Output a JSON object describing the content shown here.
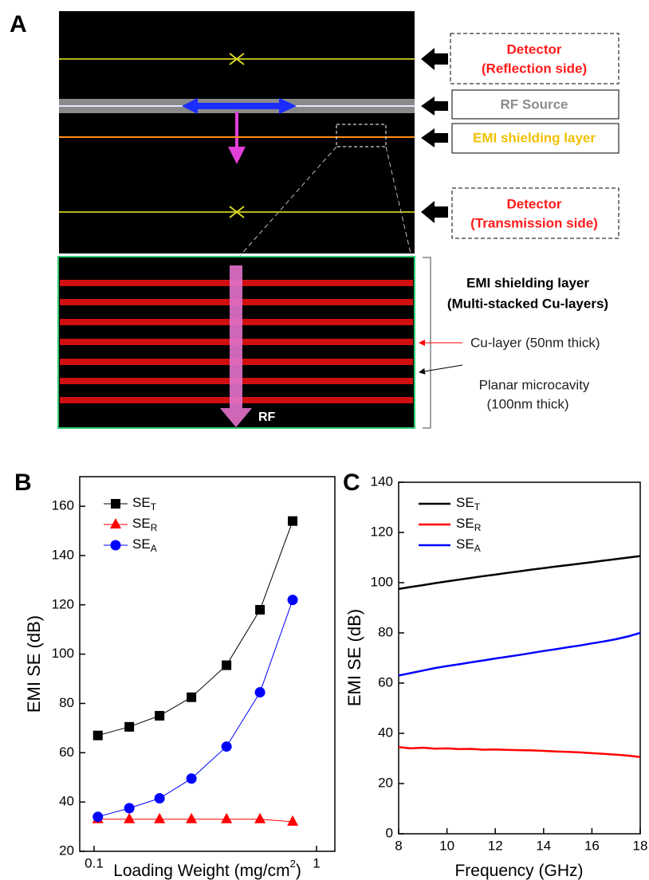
{
  "diagram": {
    "panel_label": "A",
    "detector_top": "Detector",
    "detector_top_side": "(Reflection side)",
    "rf_source": "RF Source",
    "emi_layer_box": "EMI shielding layer",
    "detector_bottom": "Detector",
    "detector_bottom_side": "(Transmission side)",
    "zoom_title": "EMI shielding layer",
    "zoom_subtitle": "(Multi-stacked Cu-layers)",
    "cu_layer": "Cu-layer  (50nm thick)",
    "cavity": "Planar microcavity",
    "cavity_thickness": "(100nm thick)",
    "rf": "RF"
  },
  "chart_data": [
    {
      "type": "line",
      "panel_label": "B",
      "x_label": "Loading Weight (mg/cm",
      "x_label_sup": "2",
      "x_label_end": ")",
      "y_label": "EMI SE (dB)",
      "x_log": true,
      "x": [
        0.104,
        0.144,
        0.197,
        0.274,
        0.394,
        0.557,
        0.781
      ],
      "series": [
        {
          "name": "SE",
          "name_sub": "T",
          "color": "#000000",
          "marker": "square",
          "values": [
            67,
            70.5,
            75,
            82.5,
            95.5,
            118,
            154
          ]
        },
        {
          "name": "SE",
          "name_sub": "R",
          "color": "#ff0000",
          "marker": "triangle",
          "values": [
            33,
            33,
            33,
            33,
            33,
            33,
            32
          ]
        },
        {
          "name": "SE",
          "name_sub": "A",
          "color": "#0000ff",
          "marker": "circle",
          "values": [
            34,
            37.5,
            41.5,
            49.5,
            62.5,
            84.5,
            122
          ]
        }
      ],
      "xlim": [
        0.0862,
        1.209
      ],
      "xticks": [
        0.1,
        1
      ],
      "ylim": [
        20,
        172
      ],
      "yticks": [
        20,
        40,
        60,
        80,
        100,
        120,
        140,
        160
      ],
      "legend": "upper left"
    },
    {
      "type": "line",
      "panel_label": "C",
      "x_label": "Frequency (GHz)",
      "y_label": "EMI SE (dB)",
      "x_log": false,
      "x": [
        8,
        8.5,
        9,
        9.5,
        10,
        10.5,
        11,
        11.5,
        12,
        12.5,
        13,
        13.5,
        14,
        14.5,
        15,
        15.5,
        16,
        16.5,
        17,
        17.5,
        18
      ],
      "series": [
        {
          "name": "SE",
          "name_sub": "T",
          "color": "#000000",
          "values": [
            97.5,
            98.3,
            99.0,
            99.8,
            100.5,
            101.2,
            101.9,
            102.6,
            103.2,
            103.9,
            104.5,
            105.2,
            105.8,
            106.4,
            107.0,
            107.6,
            108.2,
            108.8,
            109.4,
            110.0,
            110.6
          ]
        },
        {
          "name": "SE",
          "name_sub": "R",
          "color": "#ff0000",
          "values": [
            34.5,
            34.0,
            34.3,
            33.9,
            34.0,
            33.7,
            33.8,
            33.5,
            33.6,
            33.4,
            33.3,
            33.2,
            33.0,
            32.8,
            32.6,
            32.4,
            32.1,
            31.8,
            31.5,
            31.1,
            30.6
          ]
        },
        {
          "name": "SE",
          "name_sub": "A",
          "color": "#0000ff",
          "values": [
            63.0,
            64.0,
            65.0,
            66.0,
            66.8,
            67.5,
            68.3,
            69.0,
            69.8,
            70.5,
            71.2,
            72.0,
            72.8,
            73.5,
            74.3,
            75.0,
            75.8,
            76.6,
            77.5,
            78.6,
            80.0
          ]
        }
      ],
      "xlim": [
        8,
        18
      ],
      "xticks": [
        8,
        10,
        12,
        14,
        16,
        18
      ],
      "ylim": [
        0,
        140
      ],
      "yticks": [
        0,
        20,
        40,
        60,
        80,
        100,
        120,
        140
      ],
      "legend": "upper left"
    }
  ]
}
